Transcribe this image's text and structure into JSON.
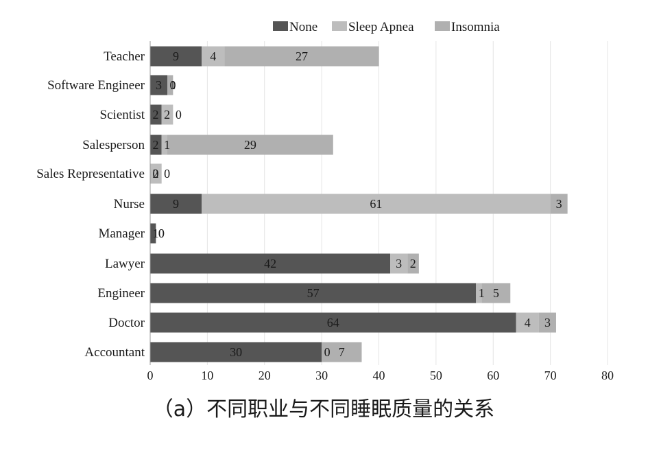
{
  "chart_data": {
    "type": "bar",
    "orientation": "horizontal",
    "stacked": true,
    "title": "（a）不同职业与不同睡眠质量的关系",
    "xlabel": "",
    "ylabel": "",
    "xlim": [
      0,
      80
    ],
    "x_ticks": [
      0,
      10,
      20,
      30,
      40,
      50,
      60,
      70,
      80
    ],
    "grid": "vertical",
    "legend": "top",
    "categories": [
      "Teacher",
      "Software Engineer",
      "Scientist",
      "Salesperson",
      "Sales Representative",
      "Nurse",
      "Manager",
      "Lawyer",
      "Engineer",
      "Doctor",
      "Accountant"
    ],
    "series": [
      {
        "name": "None",
        "color": "#555555",
        "values": [
          9,
          3,
          2,
          2,
          0,
          9,
          1,
          42,
          57,
          64,
          30
        ]
      },
      {
        "name": "Sleep Apnea",
        "color": "#bdbdbd",
        "values": [
          4,
          0,
          2,
          1,
          2,
          61,
          0,
          3,
          1,
          4,
          0
        ]
      },
      {
        "name": "Insomnia",
        "color": "#b0b0b0",
        "values": [
          27,
          1,
          0,
          29,
          0,
          3,
          0,
          2,
          5,
          3,
          7
        ]
      }
    ]
  }
}
